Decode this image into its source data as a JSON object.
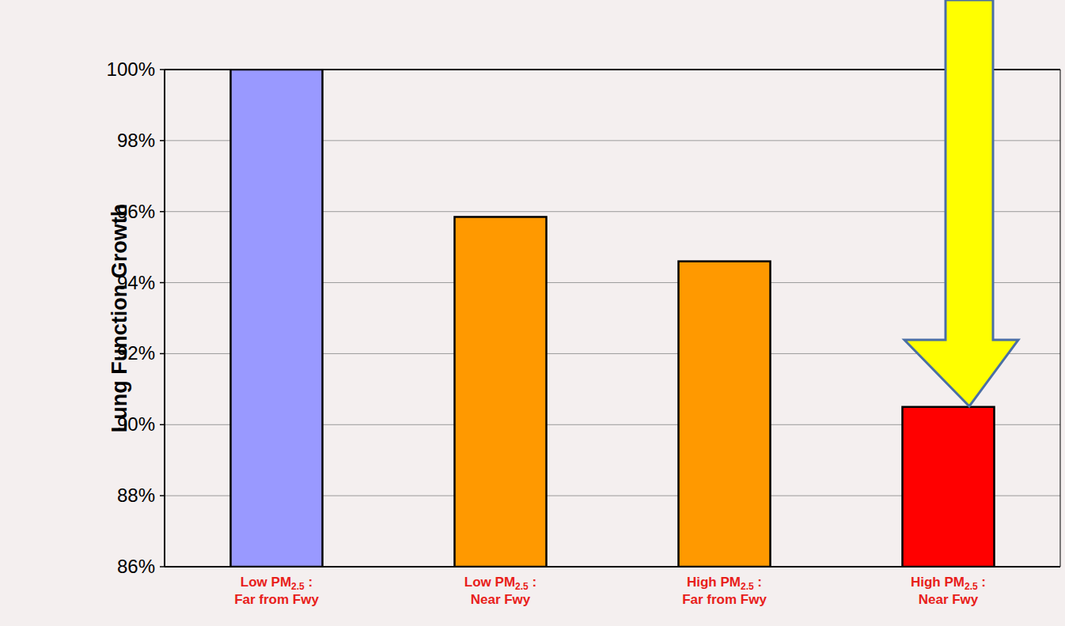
{
  "chart_data": {
    "type": "bar",
    "y_label": "Lung Function Growth",
    "categories": [
      "Low PM2.5 : Far from Fwy",
      "Low PM2.5 : Near Fwy",
      "High PM2.5 : Far from Fwy",
      "High PM2.5 : Near Fwy"
    ],
    "values": [
      100,
      95.85,
      94.6,
      90.5
    ],
    "colors": [
      "#9999ff",
      "#ff9900",
      "#ff9900",
      "#ff0000"
    ],
    "ylim": [
      86,
      100
    ],
    "yticks": [
      {
        "value": 86,
        "label": "86%"
      },
      {
        "value": 88,
        "label": "88%"
      },
      {
        "value": 90,
        "label": "90%"
      },
      {
        "value": 92,
        "label": "92%"
      },
      {
        "value": 94,
        "label": "94%"
      },
      {
        "value": 96,
        "label": "96%"
      },
      {
        "value": 98,
        "label": "98%"
      },
      {
        "value": 100,
        "label": "100%"
      }
    ],
    "grid": true
  }
}
